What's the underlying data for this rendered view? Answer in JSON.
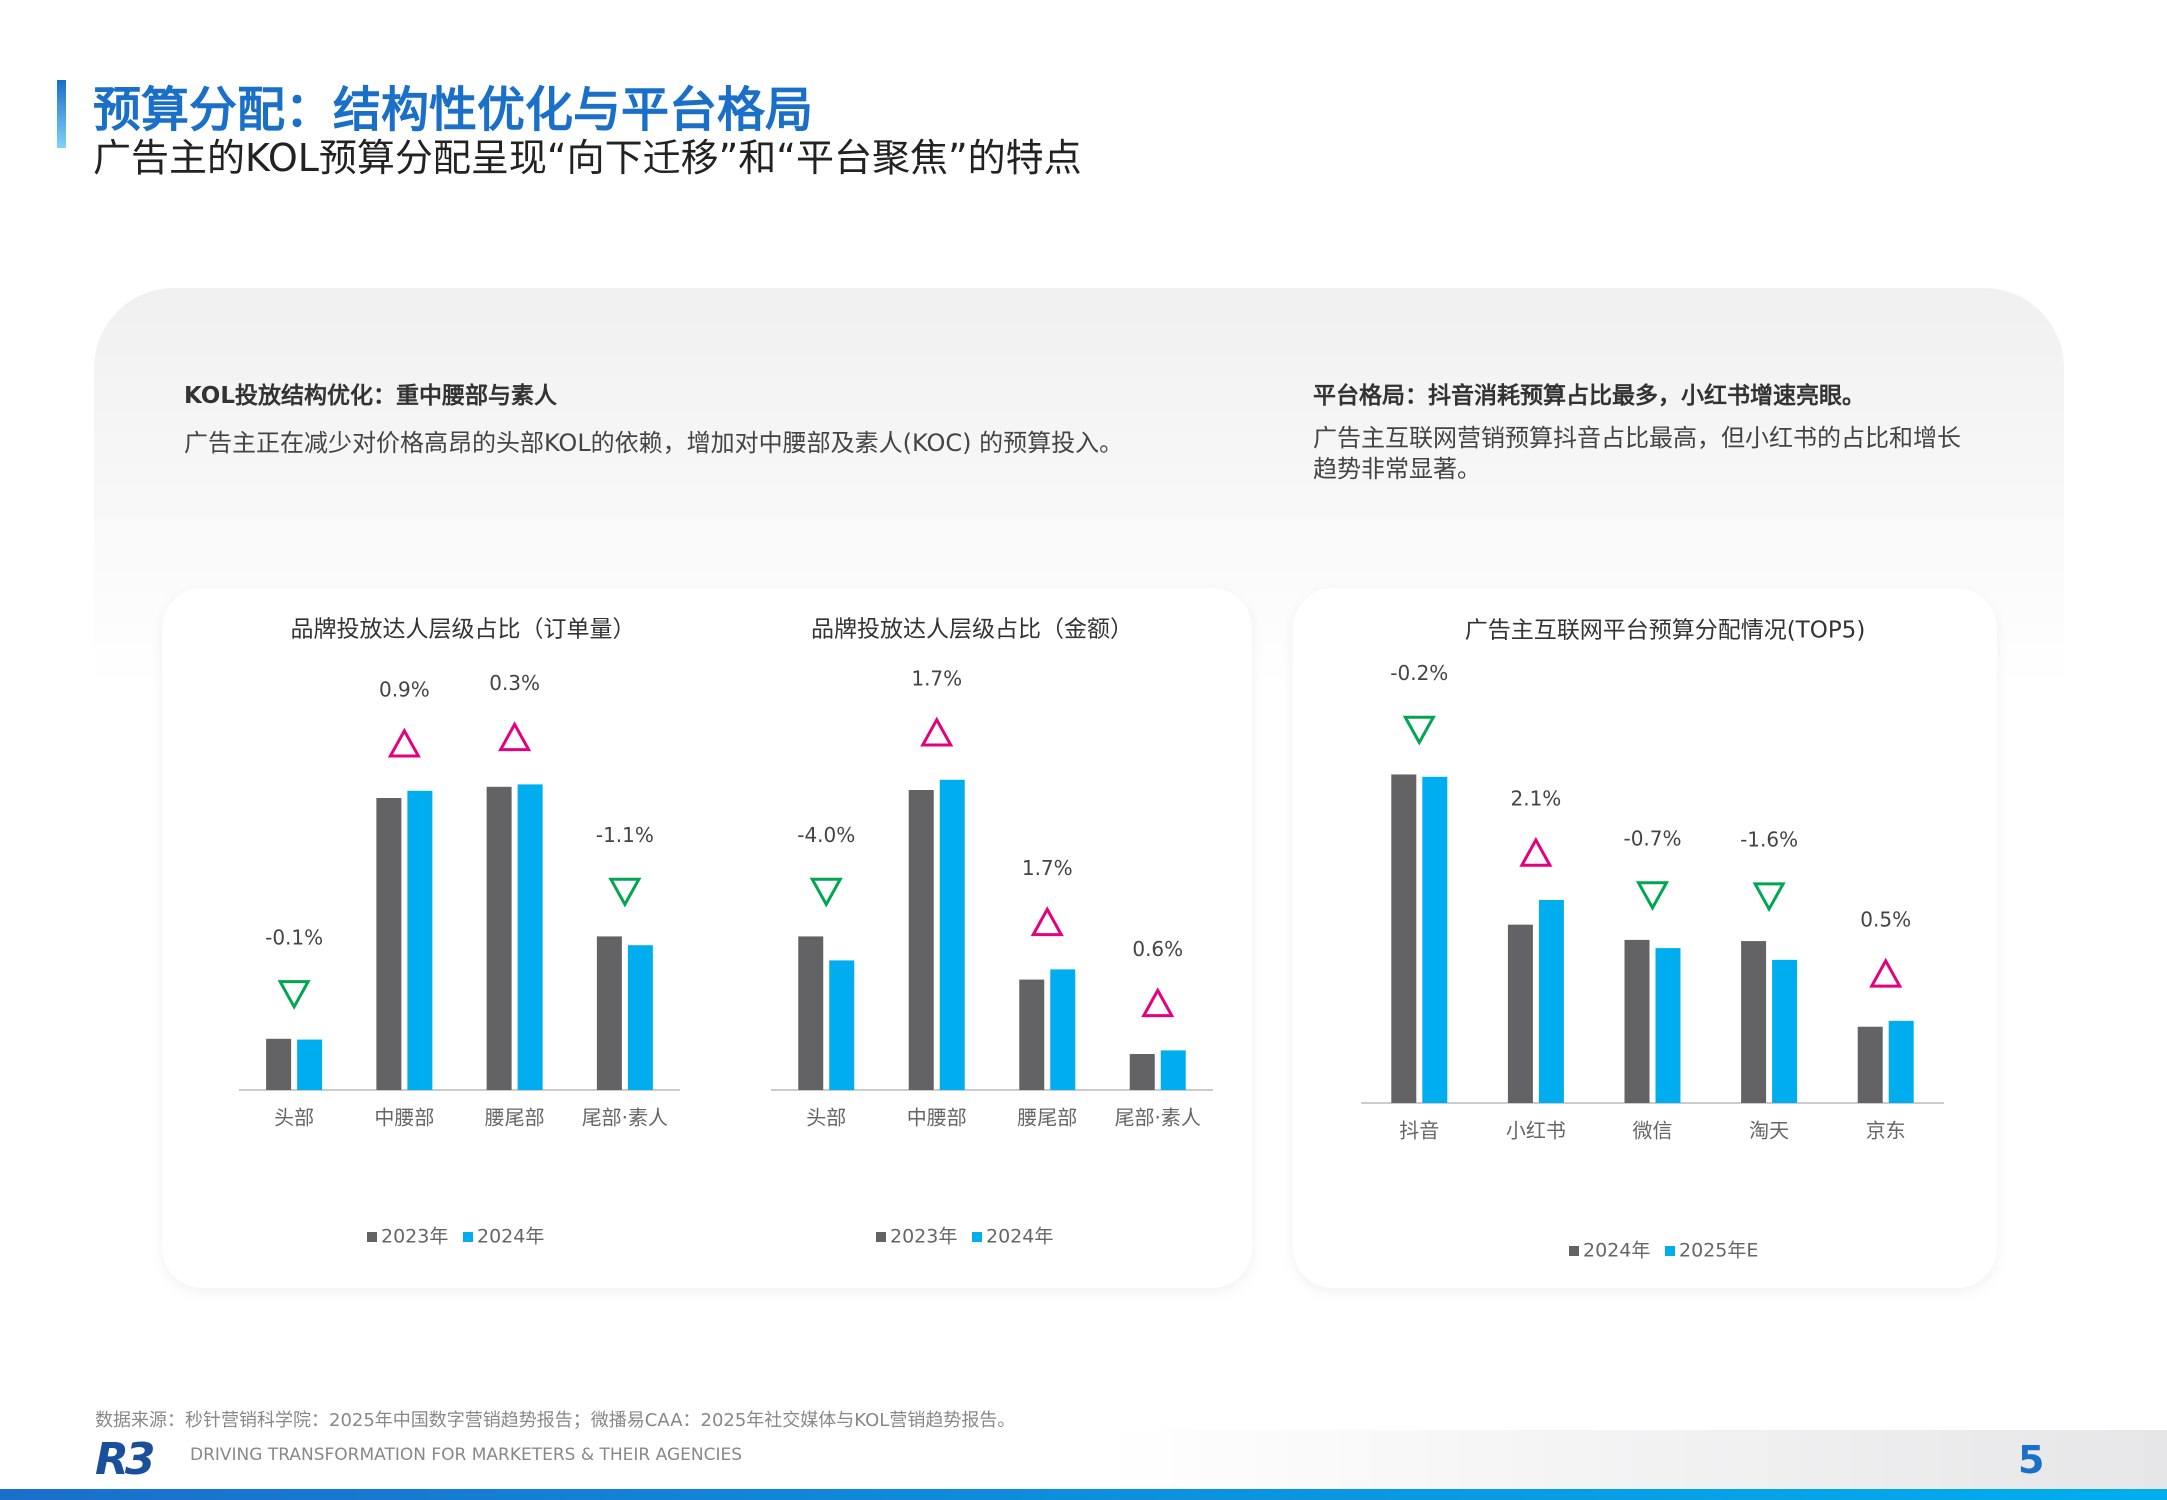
{
  "header": {
    "title": "预算分配：结构性优化与平台格局",
    "subtitle": "广告主的KOL预算分配呈现“向下迁移”和“平台聚焦”的特点"
  },
  "sections": [
    {
      "heading": "KOL投放结构优化：重中腰部与素人",
      "body": "广告主正在减少对价格高昂的头部KOL的依赖，增加对中腰部及素人(KOC) 的预算投入。"
    },
    {
      "heading": "平台格局：抖音消耗预算占比最多，小红书增速亮眼。",
      "body": "广告主互联网营销预算抖音占比最高，但小红书的占比和增长趋势非常显著。"
    }
  ],
  "chart_data": [
    {
      "type": "bar",
      "title": "品牌投放达人层级占比（订单量）",
      "categories": [
        "头部",
        "中腰部",
        "腰尾部",
        "尾部·素人"
      ],
      "series": [
        {
          "name": "2023年",
          "color": "#636366",
          "values": [
            6.4,
            36.5,
            37.9,
            19.2
          ]
        },
        {
          "name": "2024年",
          "color": "#00aeef",
          "values": [
            6.3,
            37.4,
            38.2,
            18.1
          ]
        }
      ],
      "changes": [
        -0.1,
        0.9,
        0.3,
        -1.1
      ],
      "change_labels": [
        "-0.1%",
        "0.9%",
        "0.3%",
        "-1.1%"
      ],
      "ylim": [
        0,
        45
      ],
      "up_color": "#e5007e",
      "down_color": "#00a651"
    },
    {
      "type": "bar",
      "title": "品牌投放达人层级占比（金额）",
      "categories": [
        "头部",
        "中腰部",
        "腰尾部",
        "尾部·素人"
      ],
      "series": [
        {
          "name": "2023年",
          "color": "#636366",
          "values": [
            25.6,
            50.0,
            18.4,
            6.0
          ]
        },
        {
          "name": "2024年",
          "color": "#00aeef",
          "values": [
            21.6,
            51.7,
            20.1,
            6.6
          ]
        }
      ],
      "changes": [
        -4.0,
        1.7,
        1.7,
        0.6
      ],
      "change_labels": [
        "-4.0%",
        "1.7%",
        "1.7%",
        "0.6%"
      ],
      "ylim": [
        0,
        60
      ],
      "up_color": "#e5007e",
      "down_color": "#00a651"
    },
    {
      "type": "bar",
      "title": "广告主互联网平台预算分配情况(TOP5)",
      "categories": [
        "抖音",
        "小红书",
        "微信",
        "淘天",
        "京东"
      ],
      "series": [
        {
          "name": "2024年",
          "color": "#636366",
          "values": [
            28.0,
            15.2,
            13.9,
            13.8,
            6.5
          ]
        },
        {
          "name": "2025年E",
          "color": "#00aeef",
          "values": [
            27.8,
            17.3,
            13.2,
            12.2,
            7.0
          ]
        }
      ],
      "changes": [
        -0.2,
        2.1,
        -0.7,
        -1.6,
        0.5
      ],
      "change_labels": [
        "-0.2%",
        "2.1%",
        "-0.7%",
        "-1.6%",
        "0.5%"
      ],
      "ylim": [
        0,
        30
      ],
      "up_color": "#e5007e",
      "down_color": "#00a651"
    }
  ],
  "footer": {
    "source": "数据来源：秒针营销科学院：2025年中国数字营销趋势报告；微播易CAA：2025年社交媒体与KOL营销趋势报告。",
    "logo": "R3",
    "tagline": "DRIVING TRANSFORMATION FOR MARKETERS & THEIR AGENCIES",
    "page": "5"
  }
}
